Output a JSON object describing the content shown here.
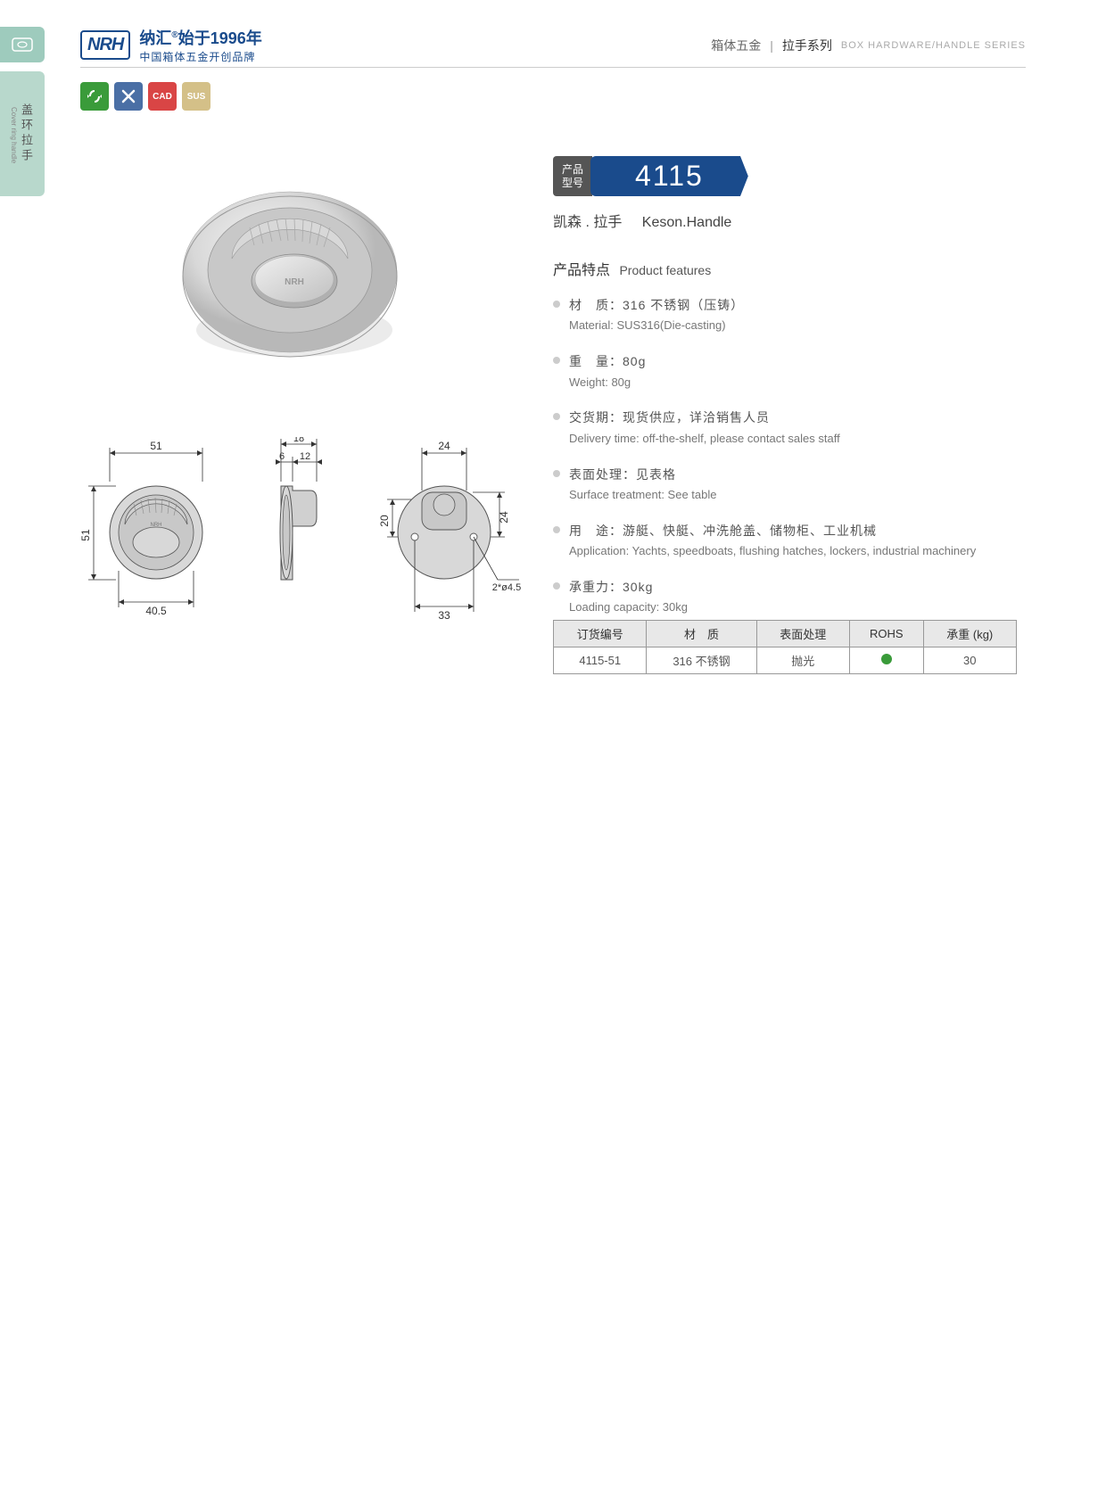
{
  "header": {
    "logo_text": "NRH",
    "brand_cn_1": "纳汇",
    "brand_reg": "®",
    "brand_year": "始于1996年",
    "brand_cn_2": "中国箱体五金开创品牌",
    "right_cn1": "箱体五金",
    "right_cn2": "拉手系列",
    "right_en": "BOX HARDWARE/HANDLE SERIES"
  },
  "side_tab": {
    "cn": "盖环拉手",
    "en": "Cover ring handle"
  },
  "badges": {
    "b1": "♻",
    "b2": "✕",
    "b3": "CAD",
    "b4": "SUS"
  },
  "model": {
    "label_l1": "产品",
    "label_l2": "型号",
    "number": "4115",
    "sub_cn": "凯森 . 拉手",
    "sub_en": "Keson.Handle"
  },
  "features": {
    "title_cn": "产品特点",
    "title_en": "Product features",
    "items": [
      {
        "cn": "材　质：316 不锈钢（压铸）",
        "en": "Material: SUS316(Die-casting)"
      },
      {
        "cn": "重　量：80g",
        "en": "Weight: 80g"
      },
      {
        "cn": "交货期：现货供应，详洽销售人员",
        "en": "Delivery time: off-the-shelf, please contact sales staff"
      },
      {
        "cn": "表面处理：见表格",
        "en": "Surface treatment: See table"
      },
      {
        "cn": "用　途：游艇、快艇、冲洗舱盖、储物柜、工业机械",
        "en": "Application: Yachts, speedboats, flushing hatches, lockers, industrial machinery"
      },
      {
        "cn": "承重力：30kg",
        "en": "Loading capacity: 30kg"
      }
    ]
  },
  "spec_table": {
    "headers": [
      "订货编号",
      "材　质",
      "表面处理",
      "ROHS",
      "承重 (kg)"
    ],
    "row": [
      "4115-51",
      "316 不锈钢",
      "抛光",
      "",
      "30"
    ]
  },
  "dimensions": {
    "d51_top": "51",
    "d18": "18",
    "d6": "6",
    "d12": "12",
    "d24_top": "24",
    "d51_left": "51",
    "d40_5": "40.5",
    "d33": "33",
    "d20": "20",
    "d24_right": "24",
    "holes": "2*ø4.5"
  },
  "colors": {
    "brand_blue": "#1a4b8c",
    "side_tab_1": "#9ecbbd",
    "side_tab_2": "#b8d8cc",
    "badge_green": "#3a9b3a",
    "badge_blue": "#4a6fa5",
    "badge_red": "#d94545",
    "badge_tan": "#d4c088",
    "model_label_bg": "#555555",
    "table_header_bg": "#e8e8e8",
    "rohs_green": "#3a9b3a",
    "metal_light": "#e8e8e8",
    "metal_mid": "#c8c8c8",
    "metal_dark": "#a0a0a0"
  }
}
